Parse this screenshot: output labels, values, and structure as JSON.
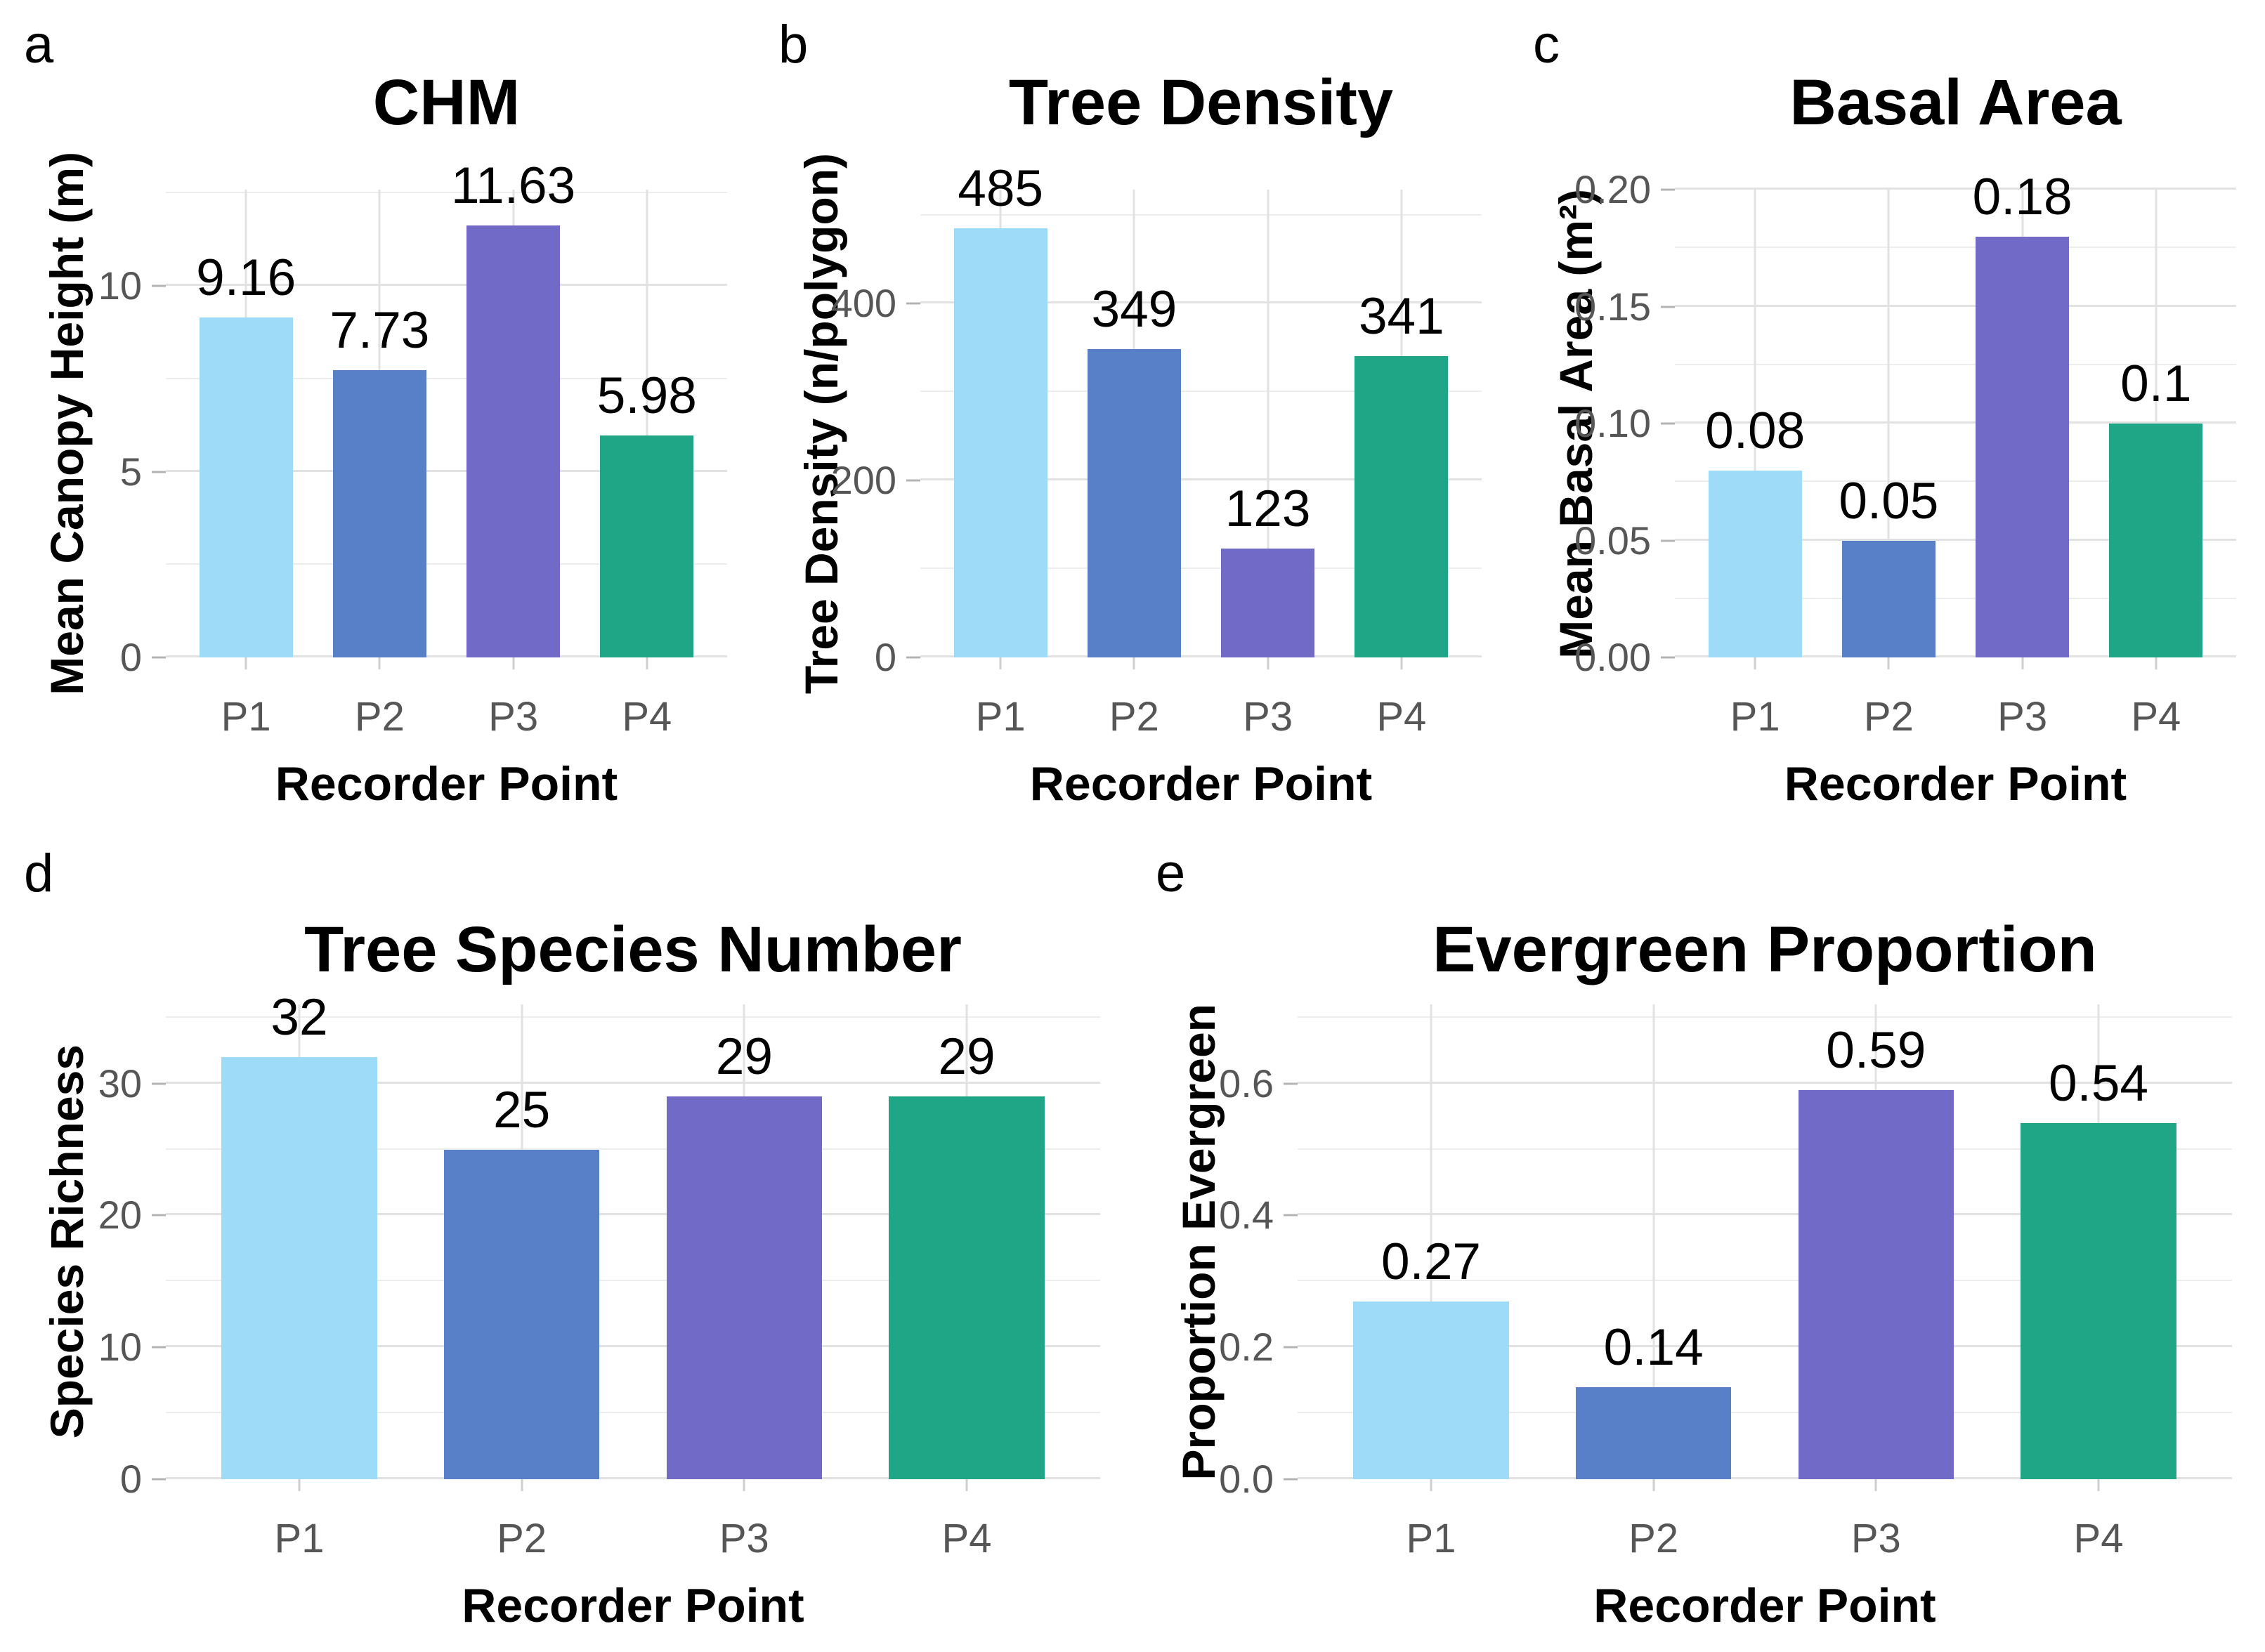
{
  "bar_colors": [
    "#9EDBF8",
    "#5880C8",
    "#716AC6",
    "#1FA687"
  ],
  "styles": {
    "background": "#FFFFFF",
    "grid_major": "#E2E2E2",
    "grid_minor": "#EDEDED",
    "tick_label_color": "#565656",
    "value_label_color": "#000000"
  },
  "chart_data": [
    {
      "type": "bar",
      "panel_label": "a",
      "title": "CHM",
      "xlabel": "Recorder Point",
      "ylabel": "Mean Canopy Height (m)",
      "categories": [
        "P1",
        "P2",
        "P3",
        "P4"
      ],
      "values": [
        9.16,
        7.73,
        11.63,
        5.98
      ],
      "value_labels": [
        "9.16",
        "7.73",
        "11.63",
        "5.98"
      ],
      "ylim": [
        0,
        12.6
      ],
      "yticks": [
        {
          "v": 0,
          "label": "0"
        },
        {
          "v": 5,
          "label": "5"
        },
        {
          "v": 10,
          "label": "10"
        }
      ],
      "yticks_minor": [
        2.5,
        7.5,
        12.5
      ],
      "grid": true,
      "legend": "none"
    },
    {
      "type": "bar",
      "panel_label": "b",
      "title": "Tree Density",
      "xlabel": "Recorder Point",
      "ylabel": "Tree Density (n/polygon)",
      "categories": [
        "P1",
        "P2",
        "P3",
        "P4"
      ],
      "values": [
        485,
        349,
        123,
        341
      ],
      "value_labels": [
        "485",
        "349",
        "123",
        "341"
      ],
      "ylim": [
        0,
        529
      ],
      "yticks": [
        {
          "v": 0,
          "label": "0"
        },
        {
          "v": 200,
          "label": "200"
        },
        {
          "v": 400,
          "label": "400"
        }
      ],
      "yticks_minor": [
        100,
        300,
        500
      ],
      "grid": true,
      "legend": "none"
    },
    {
      "type": "bar",
      "panel_label": "c",
      "title": "Basal Area",
      "xlabel": "Recorder Point",
      "ylabel": "Mean Basal Area (m²)",
      "categories": [
        "P1",
        "P2",
        "P3",
        "P4"
      ],
      "values": [
        0.08,
        0.05,
        0.18,
        0.1
      ],
      "value_labels": [
        "0.08",
        "0.05",
        "0.18",
        "0.1"
      ],
      "ylim": [
        0,
        0.2
      ],
      "yticks": [
        {
          "v": 0,
          "label": "0.00"
        },
        {
          "v": 0.05,
          "label": "0.05"
        },
        {
          "v": 0.1,
          "label": "0.10"
        },
        {
          "v": 0.15,
          "label": "0.15"
        },
        {
          "v": 0.2,
          "label": "0.20"
        }
      ],
      "yticks_minor": [
        0.025,
        0.075,
        0.125,
        0.175
      ],
      "grid": true,
      "legend": "none"
    },
    {
      "type": "bar",
      "panel_label": "d",
      "title": "Tree Species Number",
      "xlabel": "Recorder Point",
      "ylabel": "Species Richness",
      "categories": [
        "P1",
        "P2",
        "P3",
        "P4"
      ],
      "values": [
        32,
        25,
        29,
        29
      ],
      "value_labels": [
        "32",
        "25",
        "29",
        "29"
      ],
      "ylim": [
        0,
        36
      ],
      "yticks": [
        {
          "v": 0,
          "label": "0"
        },
        {
          "v": 10,
          "label": "10"
        },
        {
          "v": 20,
          "label": "20"
        },
        {
          "v": 30,
          "label": "30"
        }
      ],
      "yticks_minor": [
        5,
        15,
        25,
        35
      ],
      "grid": true,
      "legend": "none"
    },
    {
      "type": "bar",
      "panel_label": "e",
      "title": "Evergreen Proportion",
      "xlabel": "Recorder Point",
      "ylabel": "Proportion Evergreen",
      "categories": [
        "P1",
        "P2",
        "P3",
        "P4"
      ],
      "values": [
        0.27,
        0.14,
        0.59,
        0.54
      ],
      "value_labels": [
        "0.27",
        "0.14",
        "0.59",
        "0.54"
      ],
      "ylim": [
        0,
        0.72
      ],
      "yticks": [
        {
          "v": 0,
          "label": "0.0"
        },
        {
          "v": 0.2,
          "label": "0.2"
        },
        {
          "v": 0.4,
          "label": "0.4"
        },
        {
          "v": 0.6,
          "label": "0.6"
        }
      ],
      "yticks_minor": [
        0.1,
        0.3,
        0.5,
        0.7
      ],
      "grid": true,
      "legend": "none"
    }
  ]
}
